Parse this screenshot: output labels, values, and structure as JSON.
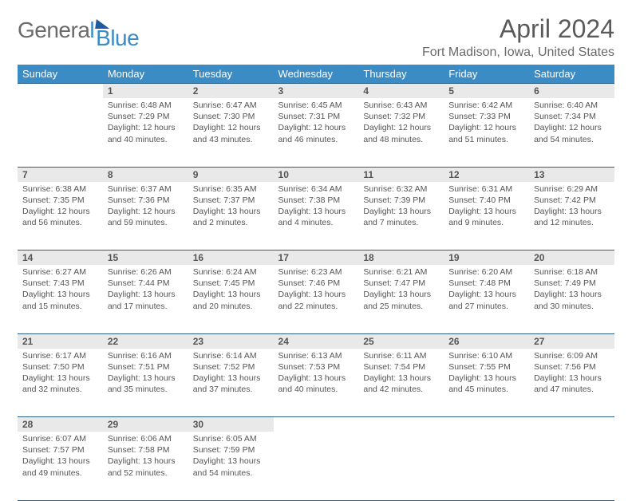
{
  "logo": {
    "text_general": "Genera",
    "text_l": "l",
    "text_blue": "Blue"
  },
  "title": "April 2024",
  "location": "Fort Madison, Iowa, United States",
  "colors": {
    "header_bg": "#3b8bc4",
    "header_text": "#ffffff",
    "daynum_bg": "#e9e9e9",
    "rule": "#2a5f8a",
    "body_text": "#555555",
    "logo_gray": "#6a6a6a",
    "logo_blue": "#3b8bc4",
    "logo_triangle": "#1e5a9e"
  },
  "weekdays": [
    "Sunday",
    "Monday",
    "Tuesday",
    "Wednesday",
    "Thursday",
    "Friday",
    "Saturday"
  ],
  "weeks": [
    {
      "nums": [
        "",
        "1",
        "2",
        "3",
        "4",
        "5",
        "6"
      ],
      "cells": [
        null,
        {
          "sunrise": "6:48 AM",
          "sunset": "7:29 PM",
          "daylight": "12 hours and 40 minutes."
        },
        {
          "sunrise": "6:47 AM",
          "sunset": "7:30 PM",
          "daylight": "12 hours and 43 minutes."
        },
        {
          "sunrise": "6:45 AM",
          "sunset": "7:31 PM",
          "daylight": "12 hours and 46 minutes."
        },
        {
          "sunrise": "6:43 AM",
          "sunset": "7:32 PM",
          "daylight": "12 hours and 48 minutes."
        },
        {
          "sunrise": "6:42 AM",
          "sunset": "7:33 PM",
          "daylight": "12 hours and 51 minutes."
        },
        {
          "sunrise": "6:40 AM",
          "sunset": "7:34 PM",
          "daylight": "12 hours and 54 minutes."
        }
      ]
    },
    {
      "nums": [
        "7",
        "8",
        "9",
        "10",
        "11",
        "12",
        "13"
      ],
      "cells": [
        {
          "sunrise": "6:38 AM",
          "sunset": "7:35 PM",
          "daylight": "12 hours and 56 minutes."
        },
        {
          "sunrise": "6:37 AM",
          "sunset": "7:36 PM",
          "daylight": "12 hours and 59 minutes."
        },
        {
          "sunrise": "6:35 AM",
          "sunset": "7:37 PM",
          "daylight": "13 hours and 2 minutes."
        },
        {
          "sunrise": "6:34 AM",
          "sunset": "7:38 PM",
          "daylight": "13 hours and 4 minutes."
        },
        {
          "sunrise": "6:32 AM",
          "sunset": "7:39 PM",
          "daylight": "13 hours and 7 minutes."
        },
        {
          "sunrise": "6:31 AM",
          "sunset": "7:40 PM",
          "daylight": "13 hours and 9 minutes."
        },
        {
          "sunrise": "6:29 AM",
          "sunset": "7:42 PM",
          "daylight": "13 hours and 12 minutes."
        }
      ]
    },
    {
      "nums": [
        "14",
        "15",
        "16",
        "17",
        "18",
        "19",
        "20"
      ],
      "cells": [
        {
          "sunrise": "6:27 AM",
          "sunset": "7:43 PM",
          "daylight": "13 hours and 15 minutes."
        },
        {
          "sunrise": "6:26 AM",
          "sunset": "7:44 PM",
          "daylight": "13 hours and 17 minutes."
        },
        {
          "sunrise": "6:24 AM",
          "sunset": "7:45 PM",
          "daylight": "13 hours and 20 minutes."
        },
        {
          "sunrise": "6:23 AM",
          "sunset": "7:46 PM",
          "daylight": "13 hours and 22 minutes."
        },
        {
          "sunrise": "6:21 AM",
          "sunset": "7:47 PM",
          "daylight": "13 hours and 25 minutes."
        },
        {
          "sunrise": "6:20 AM",
          "sunset": "7:48 PM",
          "daylight": "13 hours and 27 minutes."
        },
        {
          "sunrise": "6:18 AM",
          "sunset": "7:49 PM",
          "daylight": "13 hours and 30 minutes."
        }
      ]
    },
    {
      "nums": [
        "21",
        "22",
        "23",
        "24",
        "25",
        "26",
        "27"
      ],
      "cells": [
        {
          "sunrise": "6:17 AM",
          "sunset": "7:50 PM",
          "daylight": "13 hours and 32 minutes."
        },
        {
          "sunrise": "6:16 AM",
          "sunset": "7:51 PM",
          "daylight": "13 hours and 35 minutes."
        },
        {
          "sunrise": "6:14 AM",
          "sunset": "7:52 PM",
          "daylight": "13 hours and 37 minutes."
        },
        {
          "sunrise": "6:13 AM",
          "sunset": "7:53 PM",
          "daylight": "13 hours and 40 minutes."
        },
        {
          "sunrise": "6:11 AM",
          "sunset": "7:54 PM",
          "daylight": "13 hours and 42 minutes."
        },
        {
          "sunrise": "6:10 AM",
          "sunset": "7:55 PM",
          "daylight": "13 hours and 45 minutes."
        },
        {
          "sunrise": "6:09 AM",
          "sunset": "7:56 PM",
          "daylight": "13 hours and 47 minutes."
        }
      ]
    },
    {
      "nums": [
        "28",
        "29",
        "30",
        "",
        "",
        "",
        ""
      ],
      "cells": [
        {
          "sunrise": "6:07 AM",
          "sunset": "7:57 PM",
          "daylight": "13 hours and 49 minutes."
        },
        {
          "sunrise": "6:06 AM",
          "sunset": "7:58 PM",
          "daylight": "13 hours and 52 minutes."
        },
        {
          "sunrise": "6:05 AM",
          "sunset": "7:59 PM",
          "daylight": "13 hours and 54 minutes."
        },
        null,
        null,
        null,
        null
      ]
    }
  ],
  "labels": {
    "sunrise": "Sunrise: ",
    "sunset": "Sunset: ",
    "daylight": "Daylight: "
  }
}
